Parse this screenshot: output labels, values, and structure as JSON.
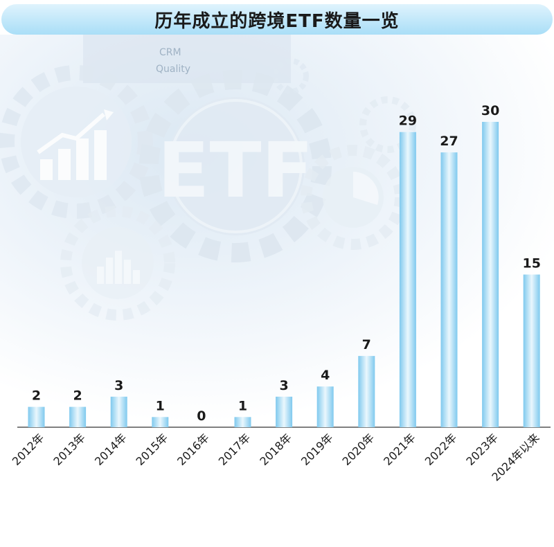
{
  "title": "历年成立的跨境ETF数量一览",
  "background": {
    "words": [
      "CRM",
      "Quality"
    ],
    "center_badge": "ETF",
    "icons": [
      "gear-icon",
      "bar-chart-icon",
      "pie-chart-icon",
      "histogram-icon"
    ]
  },
  "colors": {
    "bar_edge": "#7fc9ee",
    "bar_mid": "#eaf7fd",
    "title_bg": "#bfe6f9",
    "axis": "#555555"
  },
  "chart_data": {
    "type": "bar",
    "title": "历年成立的跨境ETF数量一览",
    "categories": [
      "2012年",
      "2013年",
      "2014年",
      "2015年",
      "2016年",
      "2017年",
      "2018年",
      "2019年",
      "2020年",
      "2021年",
      "2022年",
      "2023年",
      "2024年以来"
    ],
    "values": [
      2,
      2,
      3,
      1,
      0,
      1,
      3,
      4,
      7,
      29,
      27,
      30,
      15
    ],
    "xlabel": "",
    "ylabel": "",
    "ylim": [
      0,
      30
    ],
    "grid": false,
    "data_labels": true
  }
}
